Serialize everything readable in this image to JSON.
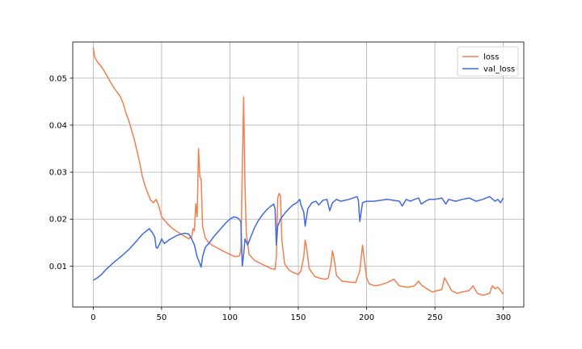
{
  "chart_data": {
    "type": "line",
    "title": "",
    "xlabel": "",
    "ylabel": "",
    "xlim": [
      -15,
      315
    ],
    "ylim": [
      0.0013,
      0.0577
    ],
    "xticks": [
      0,
      50,
      100,
      150,
      200,
      250,
      300
    ],
    "xtick_labels": [
      "0",
      "50",
      "100",
      "150",
      "200",
      "250",
      "300"
    ],
    "yticks": [
      0.01,
      0.02,
      0.03,
      0.04,
      0.05
    ],
    "ytick_labels": [
      "0.01",
      "0.02",
      "0.03",
      "0.04",
      "0.05"
    ],
    "grid": true,
    "legend_position": "top-right",
    "series": [
      {
        "name": "loss",
        "color": "#f08050",
        "points": [
          [
            0,
            0.0565
          ],
          [
            1,
            0.0545
          ],
          [
            3,
            0.0535
          ],
          [
            5,
            0.0528
          ],
          [
            7,
            0.052
          ],
          [
            9,
            0.051
          ],
          [
            11,
            0.05
          ],
          [
            13,
            0.049
          ],
          [
            15,
            0.048
          ],
          [
            18,
            0.0468
          ],
          [
            20,
            0.046
          ],
          [
            22,
            0.0445
          ],
          [
            24,
            0.0425
          ],
          [
            26,
            0.041
          ],
          [
            28,
            0.039
          ],
          [
            30,
            0.037
          ],
          [
            32,
            0.0345
          ],
          [
            34,
            0.032
          ],
          [
            36,
            0.029
          ],
          [
            38,
            0.027
          ],
          [
            40,
            0.0255
          ],
          [
            42,
            0.024
          ],
          [
            44,
            0.0235
          ],
          [
            46,
            0.0242
          ],
          [
            48,
            0.0228
          ],
          [
            50,
            0.0205
          ],
          [
            52,
            0.0198
          ],
          [
            55,
            0.0188
          ],
          [
            58,
            0.018
          ],
          [
            62,
            0.0172
          ],
          [
            66,
            0.0165
          ],
          [
            70,
            0.0158
          ],
          [
            72,
            0.0162
          ],
          [
            73,
            0.018
          ],
          [
            74,
            0.0175
          ],
          [
            75,
            0.0232
          ],
          [
            76,
            0.0205
          ],
          [
            77,
            0.035
          ],
          [
            78,
            0.029
          ],
          [
            79,
            0.0285
          ],
          [
            80,
            0.0185
          ],
          [
            82,
            0.016
          ],
          [
            85,
            0.0148
          ],
          [
            90,
            0.014
          ],
          [
            95,
            0.0132
          ],
          [
            100,
            0.0125
          ],
          [
            104,
            0.012
          ],
          [
            107,
            0.0122
          ],
          [
            108,
            0.0135
          ],
          [
            109,
            0.03
          ],
          [
            110,
            0.046
          ],
          [
            111,
            0.027
          ],
          [
            112,
            0.017
          ],
          [
            114,
            0.0125
          ],
          [
            118,
            0.0112
          ],
          [
            125,
            0.0102
          ],
          [
            130,
            0.0095
          ],
          [
            133,
            0.0093
          ],
          [
            134,
            0.012
          ],
          [
            135,
            0.0245
          ],
          [
            136,
            0.0255
          ],
          [
            137,
            0.025
          ],
          [
            138,
            0.0155
          ],
          [
            140,
            0.0105
          ],
          [
            143,
            0.0092
          ],
          [
            146,
            0.0087
          ],
          [
            150,
            0.0082
          ],
          [
            152,
            0.009
          ],
          [
            154,
            0.012
          ],
          [
            155,
            0.0155
          ],
          [
            156,
            0.0142
          ],
          [
            158,
            0.0095
          ],
          [
            162,
            0.0078
          ],
          [
            166,
            0.0074
          ],
          [
            170,
            0.0072
          ],
          [
            172,
            0.0075
          ],
          [
            174,
            0.0105
          ],
          [
            175,
            0.0132
          ],
          [
            176,
            0.012
          ],
          [
            178,
            0.008
          ],
          [
            182,
            0.0068
          ],
          [
            188,
            0.0066
          ],
          [
            192,
            0.0065
          ],
          [
            195,
            0.009
          ],
          [
            197,
            0.0145
          ],
          [
            198,
            0.012
          ],
          [
            200,
            0.0075
          ],
          [
            202,
            0.0062
          ],
          [
            206,
            0.0058
          ],
          [
            210,
            0.006
          ],
          [
            215,
            0.0065
          ],
          [
            220,
            0.0072
          ],
          [
            224,
            0.0058
          ],
          [
            230,
            0.0055
          ],
          [
            235,
            0.0058
          ],
          [
            238,
            0.0068
          ],
          [
            240,
            0.006
          ],
          [
            244,
            0.0052
          ],
          [
            248,
            0.0045
          ],
          [
            252,
            0.0048
          ],
          [
            255,
            0.005
          ],
          [
            257,
            0.0075
          ],
          [
            259,
            0.0065
          ],
          [
            262,
            0.0048
          ],
          [
            266,
            0.0042
          ],
          [
            270,
            0.0045
          ],
          [
            275,
            0.0048
          ],
          [
            278,
            0.0058
          ],
          [
            281,
            0.0042
          ],
          [
            285,
            0.0038
          ],
          [
            290,
            0.0042
          ],
          [
            292,
            0.0058
          ],
          [
            294,
            0.0052
          ],
          [
            296,
            0.0055
          ],
          [
            298,
            0.0048
          ],
          [
            300,
            0.004
          ]
        ]
      },
      {
        "name": "val_loss",
        "color": "#4169e1",
        "points": [
          [
            0,
            0.007
          ],
          [
            3,
            0.0075
          ],
          [
            6,
            0.0082
          ],
          [
            9,
            0.0092
          ],
          [
            12,
            0.01
          ],
          [
            15,
            0.0108
          ],
          [
            18,
            0.0115
          ],
          [
            21,
            0.0122
          ],
          [
            24,
            0.013
          ],
          [
            27,
            0.0138
          ],
          [
            30,
            0.0148
          ],
          [
            33,
            0.0158
          ],
          [
            36,
            0.0168
          ],
          [
            39,
            0.0175
          ],
          [
            41,
            0.018
          ],
          [
            43,
            0.0172
          ],
          [
            45,
            0.0162
          ],
          [
            46,
            0.014
          ],
          [
            47,
            0.0138
          ],
          [
            49,
            0.015
          ],
          [
            50,
            0.0158
          ],
          [
            52,
            0.0148
          ],
          [
            55,
            0.0155
          ],
          [
            58,
            0.016
          ],
          [
            61,
            0.0165
          ],
          [
            64,
            0.0168
          ],
          [
            67,
            0.017
          ],
          [
            70,
            0.0168
          ],
          [
            72,
            0.0158
          ],
          [
            74,
            0.0145
          ],
          [
            76,
            0.012
          ],
          [
            78,
            0.0105
          ],
          [
            79,
            0.0098
          ],
          [
            80,
            0.012
          ],
          [
            82,
            0.014
          ],
          [
            85,
            0.015
          ],
          [
            88,
            0.0162
          ],
          [
            91,
            0.0172
          ],
          [
            94,
            0.0182
          ],
          [
            97,
            0.0192
          ],
          [
            100,
            0.02
          ],
          [
            103,
            0.0205
          ],
          [
            106,
            0.0202
          ],
          [
            108,
            0.0195
          ],
          [
            109,
            0.01
          ],
          [
            110,
            0.0125
          ],
          [
            111,
            0.0158
          ],
          [
            113,
            0.0145
          ],
          [
            115,
            0.016
          ],
          [
            118,
            0.0182
          ],
          [
            121,
            0.0198
          ],
          [
            124,
            0.021
          ],
          [
            127,
            0.022
          ],
          [
            130,
            0.0228
          ],
          [
            132,
            0.0232
          ],
          [
            133,
            0.0222
          ],
          [
            134,
            0.0145
          ],
          [
            135,
            0.0185
          ],
          [
            137,
            0.02
          ],
          [
            140,
            0.0212
          ],
          [
            143,
            0.0222
          ],
          [
            146,
            0.023
          ],
          [
            149,
            0.0235
          ],
          [
            151,
            0.0242
          ],
          [
            152,
            0.023
          ],
          [
            154,
            0.0215
          ],
          [
            155,
            0.0185
          ],
          [
            157,
            0.0222
          ],
          [
            160,
            0.0235
          ],
          [
            163,
            0.0238
          ],
          [
            165,
            0.023
          ],
          [
            168,
            0.024
          ],
          [
            171,
            0.0242
          ],
          [
            173,
            0.0218
          ],
          [
            175,
            0.0235
          ],
          [
            178,
            0.0242
          ],
          [
            181,
            0.0238
          ],
          [
            184,
            0.024
          ],
          [
            187,
            0.0242
          ],
          [
            190,
            0.0245
          ],
          [
            193,
            0.0248
          ],
          [
            194,
            0.024
          ],
          [
            195,
            0.0195
          ],
          [
            197,
            0.0235
          ],
          [
            200,
            0.0238
          ],
          [
            205,
            0.0238
          ],
          [
            210,
            0.024
          ],
          [
            215,
            0.0242
          ],
          [
            220,
            0.024
          ],
          [
            224,
            0.0238
          ],
          [
            226,
            0.0228
          ],
          [
            229,
            0.0242
          ],
          [
            232,
            0.0238
          ],
          [
            235,
            0.0242
          ],
          [
            238,
            0.0245
          ],
          [
            240,
            0.0232
          ],
          [
            243,
            0.0238
          ],
          [
            246,
            0.0242
          ],
          [
            250,
            0.0242
          ],
          [
            255,
            0.0245
          ],
          [
            258,
            0.0232
          ],
          [
            260,
            0.0242
          ],
          [
            265,
            0.0238
          ],
          [
            270,
            0.0242
          ],
          [
            275,
            0.0245
          ],
          [
            280,
            0.0238
          ],
          [
            285,
            0.0242
          ],
          [
            290,
            0.0248
          ],
          [
            294,
            0.0238
          ],
          [
            296,
            0.0242
          ],
          [
            298,
            0.0235
          ],
          [
            300,
            0.0245
          ]
        ]
      }
    ]
  }
}
